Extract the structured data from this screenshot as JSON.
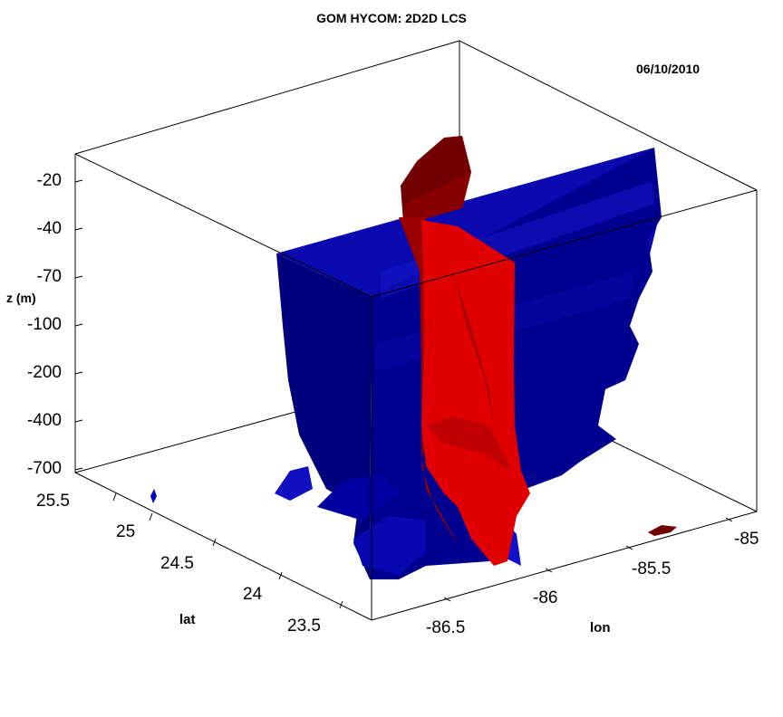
{
  "chart_data": {
    "type": "3d-isosurface",
    "title": "GOM HYCOM: 2D2D LCS",
    "annotation": "06/10/2010",
    "zlabel": "z  (m)",
    "xlabel": "lon",
    "ylabel": "lat",
    "z_ticks": [
      "-20",
      "-40",
      "-70",
      "-100",
      "-200",
      "-400",
      "-700"
    ],
    "lat_ticks": [
      "25.5",
      "25",
      "24.5",
      "24",
      "23.5"
    ],
    "lon_ticks": [
      "-86.5",
      "-86",
      "-85.5",
      "-85"
    ],
    "xlim": [
      -86.7,
      -84.9
    ],
    "ylim": [
      23.4,
      25.6
    ],
    "series": [
      {
        "color": "#0000b4",
        "shade": "#000080"
      },
      {
        "color": "#e00000",
        "shade": "#7a0000"
      }
    ],
    "grid": false
  }
}
